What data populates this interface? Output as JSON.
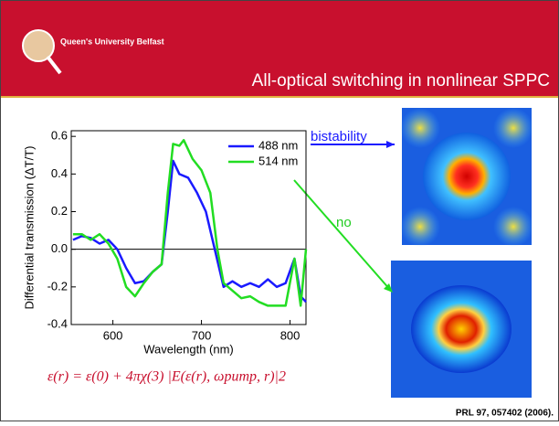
{
  "header": {
    "institution": "Queen's University Belfast",
    "title": "All-optical switching in nonlinear SPPC"
  },
  "chart_data": {
    "type": "line",
    "x_label": "Wavelength (nm)",
    "y_label": "Differential transmission (ΔT/T)",
    "xlim": [
      553,
      818
    ],
    "ylim": [
      -0.4,
      0.63
    ],
    "xticks": [
      600,
      700,
      800
    ],
    "yticks": [
      {
        "value": 0.6,
        "label": "0.6"
      },
      {
        "value": 0.4,
        "label": "0.4"
      },
      {
        "value": 0.2,
        "label": "0.2"
      },
      {
        "value": 0,
        "label": "0.0"
      },
      {
        "value": -0.2,
        "label": "-0.2"
      },
      {
        "value": -0.4,
        "label": "-0.4"
      }
    ],
    "legend_position": "upper right",
    "series": [
      {
        "name": "488 nm",
        "color": "#1a1aff",
        "x": [
          555,
          565,
          575,
          585,
          595,
          605,
          615,
          625,
          635,
          645,
          655,
          662,
          668,
          675,
          685,
          695,
          705,
          715,
          725,
          735,
          745,
          755,
          765,
          775,
          785,
          795,
          805,
          812,
          818
        ],
        "values": [
          0.05,
          0.07,
          0.06,
          0.03,
          0.05,
          0.0,
          -0.1,
          -0.18,
          -0.17,
          -0.12,
          -0.08,
          0.2,
          0.47,
          0.4,
          0.38,
          0.3,
          0.2,
          0.0,
          -0.2,
          -0.17,
          -0.2,
          -0.18,
          -0.2,
          -0.16,
          -0.2,
          -0.18,
          -0.05,
          -0.25,
          -0.28
        ]
      },
      {
        "name": "514 nm",
        "color": "#22dd22",
        "x": [
          555,
          565,
          575,
          585,
          595,
          605,
          615,
          625,
          635,
          645,
          655,
          662,
          668,
          675,
          680,
          690,
          700,
          710,
          718,
          725,
          735,
          745,
          755,
          765,
          775,
          785,
          795,
          805,
          812,
          818
        ],
        "values": [
          0.08,
          0.08,
          0.05,
          0.08,
          0.03,
          -0.05,
          -0.2,
          -0.25,
          -0.18,
          -0.12,
          -0.08,
          0.3,
          0.56,
          0.55,
          0.58,
          0.48,
          0.42,
          0.3,
          0.0,
          -0.18,
          -0.22,
          -0.26,
          -0.25,
          -0.28,
          -0.3,
          -0.3,
          -0.3,
          -0.05,
          -0.3,
          0.0
        ]
      }
    ]
  },
  "annotations": {
    "bistability": "bistability",
    "no": "no",
    "equation": "ε(r) = ε(0) + 4πχ(3) |E(ε(r), ωpump, r)|2",
    "reference": "PRL 97, 057402 (2006)."
  }
}
